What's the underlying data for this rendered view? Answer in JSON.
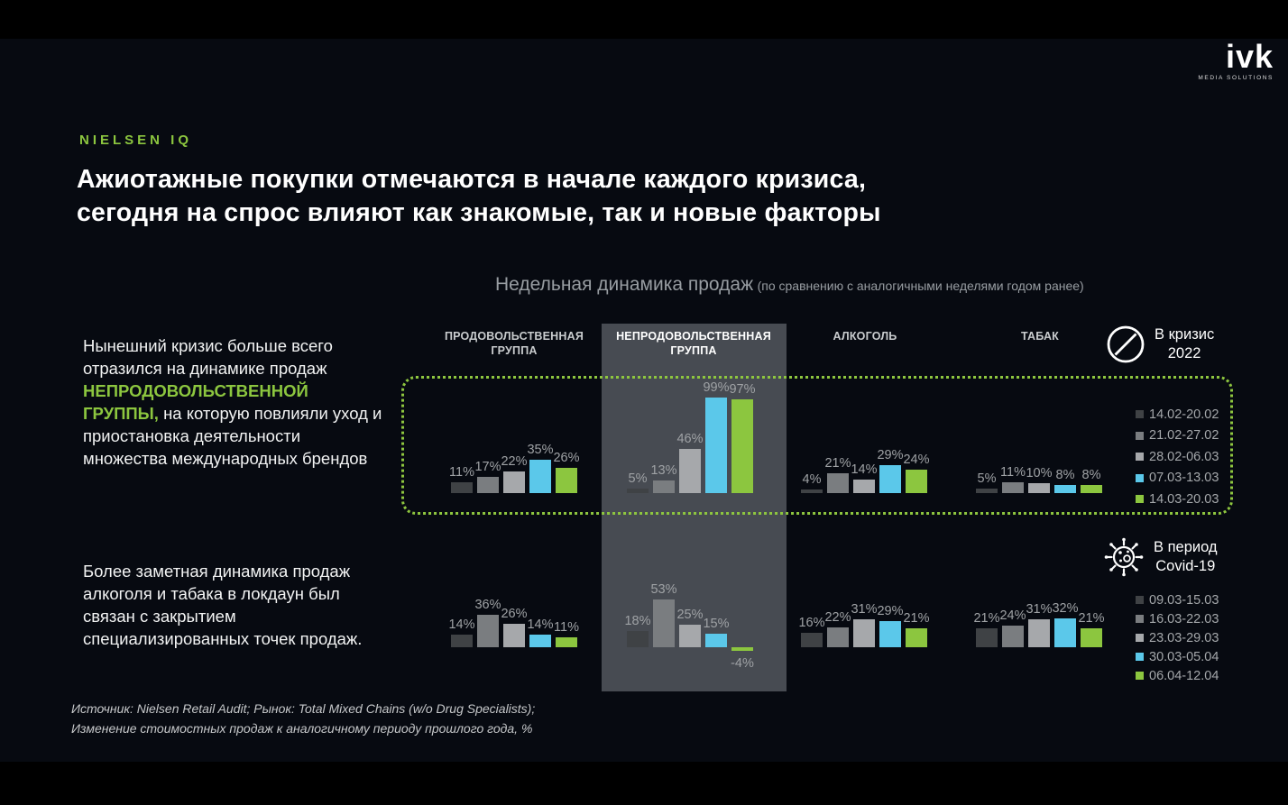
{
  "logo": {
    "name": "ivk",
    "tagline": "MEDIA SOLUTIONS"
  },
  "eyebrow": "NIELSEN IQ",
  "title": "Ажиотажные покупки отмечаются в начале каждого кризиса,\nсегодня на спрос влияют как знакомые, так и новые факторы",
  "annotations": {
    "insight_1": {
      "before": "Нынешний кризис больше всего отразился на динамике продаж ",
      "highlight": "НЕПРОДОВОЛЬСТВЕННОЙ ГРУППЫ,",
      "after": " на которую повлияли уход и приостановка деятельности множества международных брендов"
    },
    "insight_2": "Более заметная динамика продаж алкоголя и табака в локдаун был связан с закрытием специализированных точек продаж."
  },
  "footnote": "Источник: Nielsen Retail Audit; Рынок: Total Mixed Chains (w/o Drug Specialists);\nИзменение  стоимостных продаж к аналогичному периоду прошлого года, %",
  "colors": {
    "accent_green": "#8cc63f",
    "cyan": "#5bc8ea",
    "highlight_column": "#474b52",
    "dotted_border": "#8ec63f",
    "background": "#070a11"
  },
  "chart_data": {
    "type": "bar",
    "unit": "%",
    "title": "Недельная динамика продаж",
    "subtitle": "(по сравнению с аналогичными неделями годом ранее)",
    "groups": [
      {
        "label": "ПРОДОВОЛЬСТВЕННАЯ\nГРУППА",
        "highlighted": false
      },
      {
        "label": "НЕПРОДОВОЛЬСТВЕННАЯ\nГРУППА",
        "highlighted": true
      },
      {
        "label": "АЛКОГОЛЬ",
        "highlighted": false
      },
      {
        "label": "ТАБАК",
        "highlighted": false
      }
    ],
    "series_colors": [
      "#3f4245",
      "#7a7d80",
      "#a6a8ab",
      "#5bc8ea",
      "#8cc63f"
    ],
    "rows": [
      {
        "period_label": "В кризис\n2022",
        "icon": "ban-icon",
        "legend": [
          "14.02-20.02",
          "21.02-27.02",
          "28.02-06.03",
          "07.03-13.03",
          "14.03-20.03"
        ],
        "values": [
          [
            11,
            17,
            22,
            35,
            26
          ],
          [
            5,
            13,
            46,
            99,
            97
          ],
          [
            4,
            21,
            14,
            29,
            24
          ],
          [
            5,
            11,
            10,
            8,
            8
          ]
        ]
      },
      {
        "period_label": "В период\nCovid-19",
        "icon": "virus-icon",
        "legend": [
          "09.03-15.03",
          "16.03-22.03",
          "23.03-29.03",
          "30.03-05.04",
          "06.04-12.04"
        ],
        "values": [
          [
            14,
            36,
            26,
            14,
            11
          ],
          [
            18,
            53,
            25,
            15,
            -4
          ],
          [
            16,
            22,
            31,
            29,
            21
          ],
          [
            21,
            24,
            31,
            32,
            21
          ]
        ]
      }
    ]
  }
}
